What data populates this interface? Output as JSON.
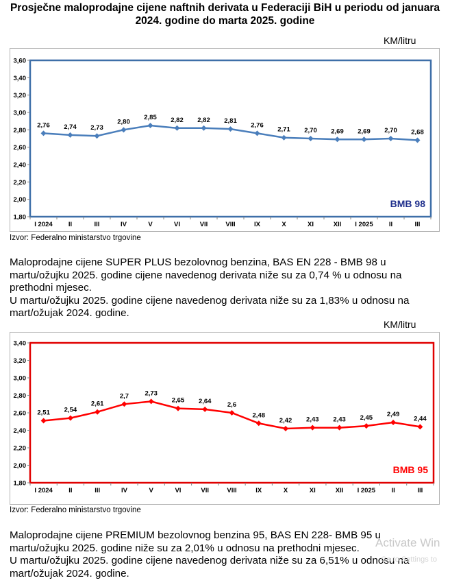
{
  "title": "Prosječne maloprodajne cijene naftnih derivata u Federaciji BiH u periodu od januara 2024. godine do marta 2025. godine",
  "chart_data": [
    {
      "type": "line",
      "unit_label": "KM/litru",
      "series_label": "BMB 98",
      "color": "#4a7ebb",
      "frame_color": "#3e6fa8",
      "label_color": "#1f2f8c",
      "categories": [
        "I 2024",
        "II",
        "III",
        "IV",
        "V",
        "VI",
        "VII",
        "VIII",
        "IX",
        "X",
        "XI",
        "XII",
        "I 2025",
        "II",
        "III"
      ],
      "values": [
        2.76,
        2.74,
        2.73,
        2.8,
        2.85,
        2.82,
        2.82,
        2.81,
        2.76,
        2.71,
        2.7,
        2.69,
        2.69,
        2.7,
        2.68
      ],
      "data_labels": [
        "2,76",
        "2,74",
        "2,73",
        "2,80",
        "2,85",
        "2,82",
        "2,82",
        "2,81",
        "2,76",
        "2,71",
        "2,70",
        "2,69",
        "2,69",
        "2,70",
        "2,68"
      ],
      "yticks": [
        "1,80",
        "2,00",
        "2,20",
        "2,40",
        "2,60",
        "2,80",
        "3,00",
        "3,20",
        "3,40",
        "3,60"
      ],
      "ylim": [
        1.8,
        3.6
      ],
      "source": "Izvor: Federalno ministarstvo trgovine"
    },
    {
      "type": "line",
      "unit_label": "KM/litru",
      "series_label": "BMB 95",
      "color": "#ff0000",
      "frame_color": "#e00000",
      "label_color": "#ff0000",
      "categories": [
        "I 2024",
        "II",
        "III",
        "IV",
        "V",
        "VI",
        "VII",
        "VIII",
        "IX",
        "X",
        "XI",
        "XII",
        "I 2025",
        "II",
        "III"
      ],
      "values": [
        2.51,
        2.54,
        2.61,
        2.7,
        2.73,
        2.65,
        2.64,
        2.6,
        2.48,
        2.42,
        2.43,
        2.43,
        2.45,
        2.49,
        2.44
      ],
      "data_labels": [
        "2,51",
        "2,54",
        "2,61",
        "2,7",
        "2,73",
        "2,65",
        "2,64",
        "2,6",
        "2,48",
        "2,42",
        "2,43",
        "2,43",
        "2,45",
        "2,49",
        "2,44"
      ],
      "yticks": [
        "1,80",
        "2,00",
        "2,20",
        "2,40",
        "2,60",
        "2,80",
        "3,00",
        "3,20",
        "3,40"
      ],
      "ylim": [
        1.8,
        3.4
      ],
      "source": "Izvor: Federalno ministarstvo trgovine"
    }
  ],
  "paragraph1": [
    "Maloprodajne cijene SUPER PLUS bezolovnog benzina, BAS EN 228 - BMB 98 u martu/ožujku 2025. godine cijene navedenog derivata niže su za 0,74 % u odnosu na prethodni mjesec.",
    "U martu/ožujku 2025. godine cijene navedenog derivata niže su za 1,83% u odnosu na mart/ožujak 2024. godine."
  ],
  "paragraph2": [
    "Maloprodajne cijene PREMIUM bezolovnog benzina 95, BAS EN 228- BMB 95 u martu/ožujku 2025. godine niže su za 2,01% u odnosu na prethodni mjesec.",
    "U martu/ožujku 2025. godine cijene navedenog derivata niže su za 6,51% u odnosu na mart/ožujak 2024. godine."
  ],
  "watermark": {
    "line1": "Activate Win",
    "line2": "Go to Settings to"
  }
}
